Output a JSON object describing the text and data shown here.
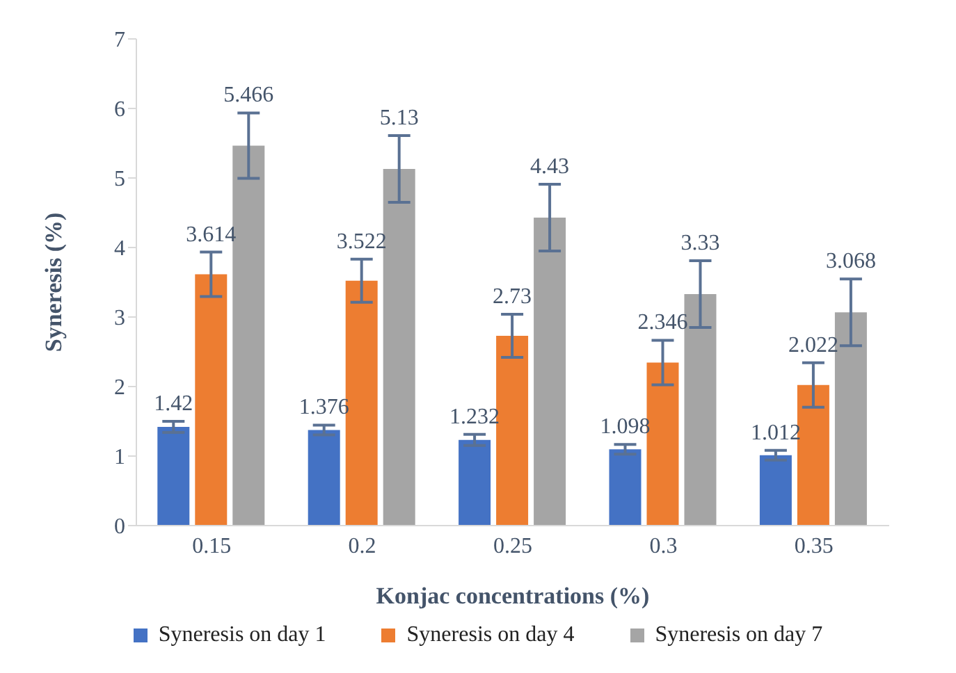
{
  "chart_data": {
    "type": "bar",
    "xlabel": "Konjac concentrations (%)",
    "ylabel": "Syneresis (%)",
    "categories": [
      "0.15",
      "0.2",
      "0.25",
      "0.3",
      "0.35"
    ],
    "series": [
      {
        "name": "Syneresis on day 1",
        "color": "#4472c4",
        "values": [
          1.42,
          1.376,
          1.232,
          1.098,
          1.012
        ],
        "errors": [
          0.08,
          0.07,
          0.08,
          0.07,
          0.07
        ]
      },
      {
        "name": "Syneresis on day 4",
        "color": "#ed7d31",
        "values": [
          3.614,
          3.522,
          2.73,
          2.346,
          2.022
        ],
        "errors": [
          0.32,
          0.31,
          0.31,
          0.32,
          0.32
        ]
      },
      {
        "name": "Syneresis on day 7",
        "color": "#a5a5a5",
        "values": [
          5.466,
          5.13,
          4.43,
          3.33,
          3.068
        ],
        "errors": [
          0.47,
          0.48,
          0.48,
          0.48,
          0.48
        ]
      }
    ],
    "ylim": [
      0,
      7
    ],
    "yticks": [
      0,
      1,
      2,
      3,
      4,
      5,
      6,
      7
    ],
    "legend": "bottom",
    "data_labels": true
  }
}
